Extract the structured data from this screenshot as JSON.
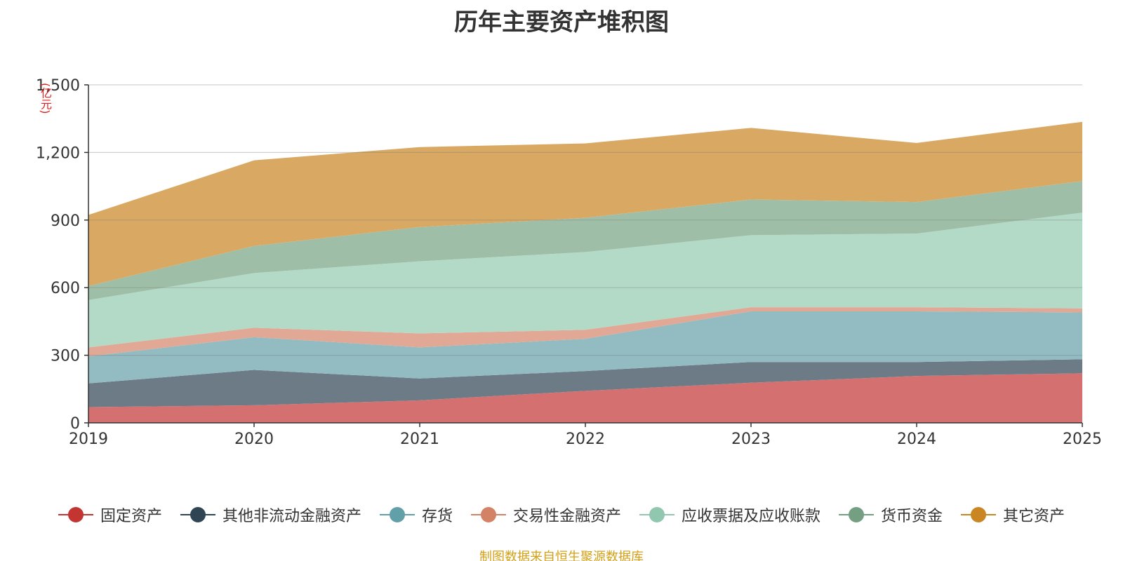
{
  "chart_data": {
    "type": "area",
    "stacked": true,
    "title": "历年主要资产堆积图",
    "unit_label": "(亿元)",
    "source_note": "制图数据来自恒生聚源数据库",
    "x": [
      "2019",
      "2020",
      "2021",
      "2022",
      "2023",
      "2024",
      "2025"
    ],
    "y_ticks": [
      "0",
      "300",
      "600",
      "900",
      "1,200",
      "1,500"
    ],
    "ylim": [
      0,
      1500
    ],
    "legend_position": "bottom",
    "series": [
      {
        "name": "固定资产",
        "color": "#c23531",
        "fill": "#d47170",
        "values": [
          70,
          78,
          100,
          142,
          178,
          208,
          220
        ]
      },
      {
        "name": "其他非流动金融资产",
        "color": "#2f4554",
        "fill": "#6d7b87",
        "values": [
          105,
          157,
          97,
          88,
          92,
          62,
          62
        ]
      },
      {
        "name": "存货",
        "color": "#61a0a8",
        "fill": "#92bcc2",
        "values": [
          120,
          145,
          138,
          143,
          225,
          225,
          208
        ]
      },
      {
        "name": "交易性金融资产",
        "color": "#d48265",
        "fill": "#e0a895",
        "values": [
          40,
          42,
          62,
          40,
          18,
          18,
          18
        ]
      },
      {
        "name": "应收票据及应收账款",
        "color": "#91c7ae",
        "fill": "#b2dac7",
        "values": [
          210,
          243,
          320,
          345,
          320,
          327,
          425
        ]
      },
      {
        "name": "货币资金",
        "color": "#749f83",
        "fill": "#9fbea7",
        "values": [
          62,
          120,
          152,
          152,
          158,
          140,
          140
        ]
      },
      {
        "name": "其它资产",
        "color": "#ca8622",
        "fill": "#d9a963",
        "values": [
          316,
          380,
          355,
          330,
          318,
          262,
          263
        ]
      }
    ]
  }
}
